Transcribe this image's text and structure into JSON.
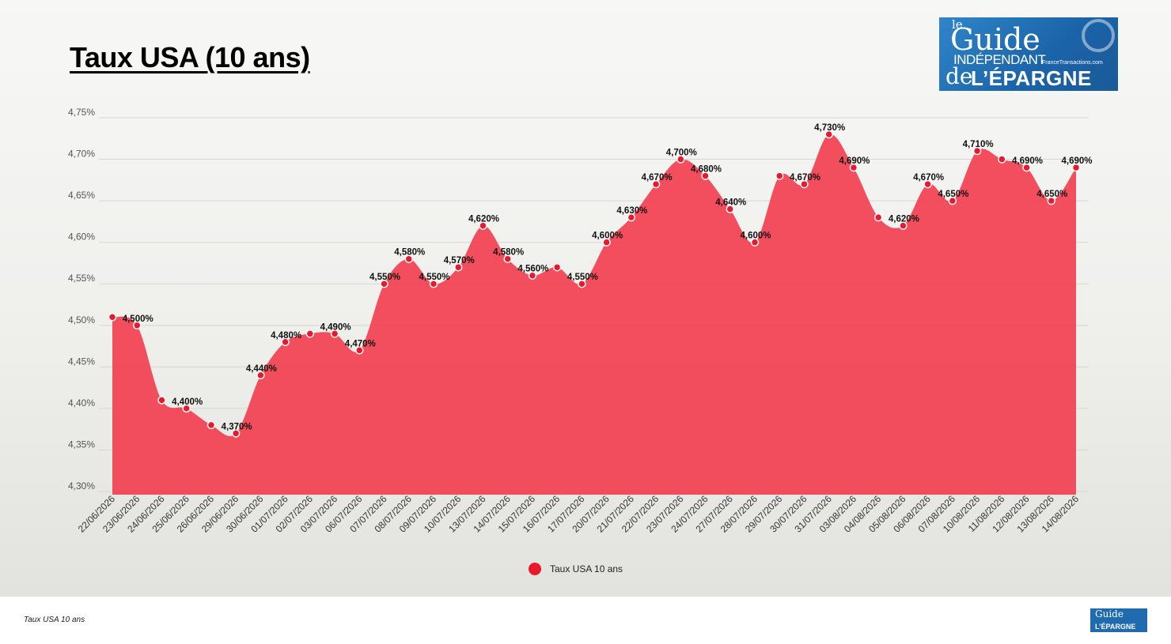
{
  "title": "Taux USA (10 ans)",
  "source_note": "Taux USA 10 ans",
  "logo": {
    "line1": "le",
    "line2": "Guide",
    "line3": "INDÉPENDANT",
    "line4": "de",
    "line5": "L’ÉPARGNE",
    "line6": "FranceTransactions.com"
  },
  "colors": {
    "series": "#e8192c",
    "area": "#f14455"
  },
  "chart_data": {
    "type": "area",
    "x": [
      "22/06/2026",
      "23/06/2026",
      "24/06/2026",
      "25/06/2026",
      "26/06/2026",
      "29/06/2026",
      "30/06/2026",
      "01/07/2026",
      "02/07/2026",
      "03/07/2026",
      "06/07/2026",
      "07/07/2026",
      "08/07/2026",
      "09/07/2026",
      "10/07/2026",
      "13/07/2026",
      "14/07/2026",
      "15/07/2026",
      "16/07/2026",
      "17/07/2026",
      "20/07/2026",
      "21/07/2026",
      "22/07/2026",
      "23/07/2026",
      "24/07/2026",
      "27/07/2026",
      "28/07/2026",
      "29/07/2026",
      "30/07/2026",
      "31/07/2026",
      "03/08/2026",
      "04/08/2026",
      "05/08/2026",
      "06/08/2026",
      "07/08/2026",
      "10/08/2026",
      "11/08/2026",
      "12/08/2026",
      "13/08/2026",
      "14/08/2026"
    ],
    "series": [
      {
        "name": "Taux USA 10 ans",
        "values": [
          4.51,
          4.5,
          4.41,
          4.4,
          4.38,
          4.37,
          4.44,
          4.48,
          4.49,
          4.49,
          4.47,
          4.55,
          4.58,
          4.55,
          4.57,
          4.62,
          4.58,
          4.56,
          4.57,
          4.55,
          4.6,
          4.63,
          4.67,
          4.7,
          4.68,
          4.64,
          4.6,
          4.68,
          4.67,
          4.73,
          4.69,
          4.63,
          4.62,
          4.67,
          4.65,
          4.71,
          4.7,
          4.69,
          4.65,
          4.69
        ],
        "labels": [
          "",
          "4,500%",
          "",
          "4,400%",
          "",
          "4,370%",
          "4,440%",
          "4,480%",
          "",
          "4,490%",
          "4,470%",
          "4,550%",
          "4,580%",
          "4,550%",
          "4,570%",
          "4,620%",
          "4,580%",
          "4,560%",
          "",
          "4,550%",
          "4,600%",
          "4,630%",
          "4,670%",
          "4,700%",
          "4,680%",
          "4,640%",
          "4,600%",
          "",
          "4,670%",
          "4,730%",
          "4,690%",
          "",
          "4,620%",
          "4,670%",
          "4,650%",
          "4,710%",
          "",
          "4,690%",
          "4,650%",
          "4,690%"
        ]
      }
    ],
    "y_ticks": [
      "4,30%",
      "4,35%",
      "4,40%",
      "4,45%",
      "4,50%",
      "4,55%",
      "4,60%",
      "4,65%",
      "4,70%",
      "4,75%"
    ],
    "ylim": [
      4.3,
      4.75
    ],
    "grid": true,
    "legend": "bottom-center"
  }
}
